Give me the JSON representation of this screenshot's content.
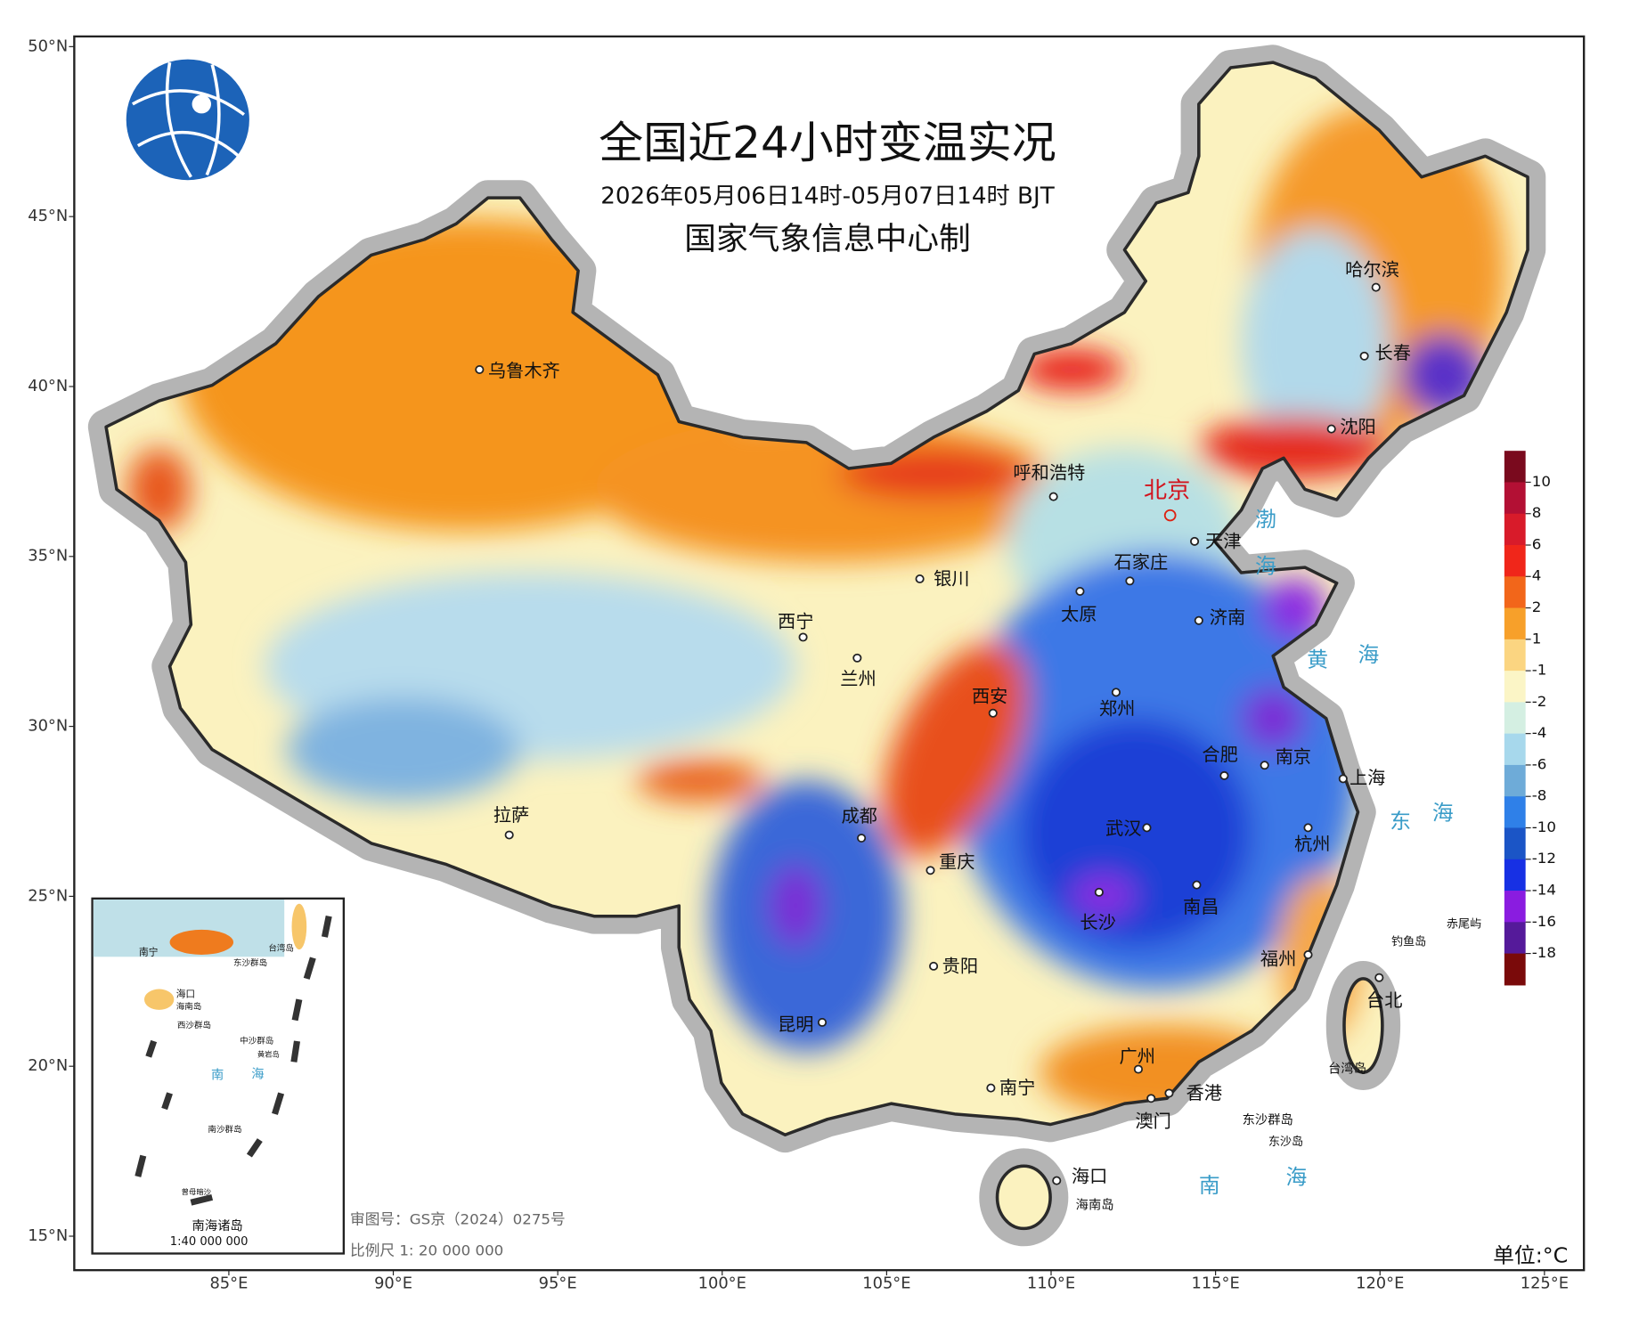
{
  "title": "全国近24小时变温实况",
  "subtitle": "2026年05月06日14时-05月07日14时 BJT",
  "producer": "国家气象信息中心制",
  "map": {
    "latlim": [
      14,
      50.3
    ],
    "lonlim": [
      80.3,
      126.2
    ],
    "lat_ticks": [
      {
        "value": 50,
        "label": "50°N"
      },
      {
        "value": 45,
        "label": "45°N"
      },
      {
        "value": 40,
        "label": "40°N"
      },
      {
        "value": 35,
        "label": "35°N"
      },
      {
        "value": 30,
        "label": "30°N"
      },
      {
        "value": 25,
        "label": "25°N"
      },
      {
        "value": 20,
        "label": "20°N"
      },
      {
        "value": 15,
        "label": "15°N"
      }
    ],
    "lon_ticks": [
      {
        "value": 85,
        "label": "85°E"
      },
      {
        "value": 90,
        "label": "90°E"
      },
      {
        "value": 95,
        "label": "95°E"
      },
      {
        "value": 100,
        "label": "100°E"
      },
      {
        "value": 105,
        "label": "105°E"
      },
      {
        "value": 110,
        "label": "110°E"
      },
      {
        "value": 115,
        "label": "115°E"
      },
      {
        "value": 120,
        "label": "120°E"
      },
      {
        "value": 125,
        "label": "125°E"
      }
    ],
    "cities": [
      "乌鲁木齐",
      "呼和浩特",
      "北京",
      "天津",
      "石家庄",
      "银川",
      "太原",
      "济南",
      "西宁",
      "兰州",
      "西安",
      "郑州",
      "合肥",
      "南京",
      "上海",
      "拉萨",
      "成都",
      "重庆",
      "武汉",
      "杭州",
      "长沙",
      "南昌",
      "福州",
      "贵阳",
      "昆明",
      "台北",
      "广州",
      "南宁",
      "香港",
      "澳门",
      "海口",
      "哈尔滨",
      "长春",
      "沈阳"
    ],
    "labels": [
      "渤",
      "海",
      "黄",
      "海",
      "东",
      "海",
      "南",
      "海",
      "海南岛",
      "钓鱼岛",
      "赤尾屿",
      "东沙群岛",
      "东沙岛",
      "台湾岛"
    ]
  },
  "legend": {
    "unit": "单位:°C",
    "levels": [
      10,
      8,
      6,
      4,
      2,
      1,
      -1,
      -2,
      -4,
      -6,
      -8,
      -10,
      -12,
      -14,
      -16,
      -18
    ],
    "colors": [
      "#7a0a1e",
      "#b31034",
      "#d81b2a",
      "#f0261a",
      "#f2661a",
      "#f7a02a",
      "#fbd581",
      "#fbf5c6",
      "#d4efe2",
      "#a7d8ec",
      "#6eabd8",
      "#2f80e8",
      "#1b55c6",
      "#1730e4",
      "#8a1ce0",
      "#551a9a",
      "#7a0a0a"
    ]
  },
  "inset": {
    "title": "南海诸岛",
    "scale": "1:40 000 000",
    "labels": [
      "南宁",
      "海口",
      "海南岛",
      "台湾岛",
      "东沙群岛",
      "西沙群岛",
      "中沙群岛",
      "黄岩岛",
      "南",
      "海",
      "南沙群岛",
      "曾母暗沙"
    ]
  },
  "approval": "审图号：GS京（2024）0275号",
  "scale": "比例尺 1: 20 000 000"
}
